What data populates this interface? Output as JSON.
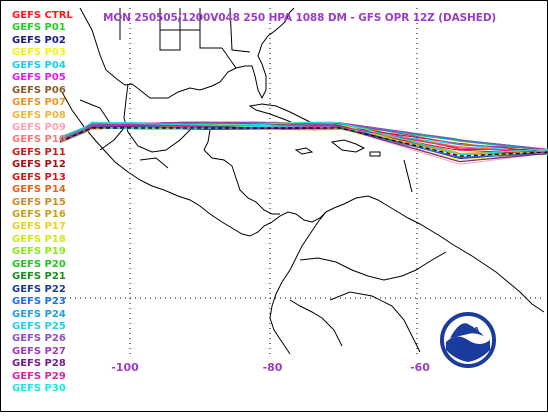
{
  "title": "MON 250505/1200V048  250 HPA 1088 DM - GFS OPR 12Z (DASHED)",
  "legend": [
    {
      "label": "GEFS CTRL",
      "color": "#ff1a1a"
    },
    {
      "label": "GEFS P01",
      "color": "#20d020"
    },
    {
      "label": "GEFS P02",
      "color": "#1a1a8c"
    },
    {
      "label": "GEFS P03",
      "color": "#f2f21a"
    },
    {
      "label": "GEFS P04",
      "color": "#1ad0e8"
    },
    {
      "label": "GEFS P05",
      "color": "#e81ae8"
    },
    {
      "label": "GEFS P06",
      "color": "#8c5a2a"
    },
    {
      "label": "GEFS P07",
      "color": "#f0902a"
    },
    {
      "label": "GEFS P08",
      "color": "#f0b43c"
    },
    {
      "label": "GEFS P09",
      "color": "#ffa0b4"
    },
    {
      "label": "GEFS P10",
      "color": "#f07878"
    },
    {
      "label": "GEFS P11",
      "color": "#d01a1a"
    },
    {
      "label": "GEFS P12",
      "color": "#a01414"
    },
    {
      "label": "GEFS P13",
      "color": "#c81e1e"
    },
    {
      "label": "GEFS P14",
      "color": "#e0641e"
    },
    {
      "label": "GEFS P15",
      "color": "#d28c1e"
    },
    {
      "label": "GEFS P16",
      "color": "#c8a01e"
    },
    {
      "label": "GEFS P17",
      "color": "#e6d21e"
    },
    {
      "label": "GEFS P18",
      "color": "#d2e61e"
    },
    {
      "label": "GEFS P19",
      "color": "#8ce61e"
    },
    {
      "label": "GEFS P20",
      "color": "#1ec81e"
    },
    {
      "label": "GEFS P21",
      "color": "#1e8c1e"
    },
    {
      "label": "GEFS P22",
      "color": "#1e3c8c"
    },
    {
      "label": "GEFS P23",
      "color": "#1e6ee6"
    },
    {
      "label": "GEFS P24",
      "color": "#1ea0e6"
    },
    {
      "label": "GEFS P25",
      "color": "#1ed2e6"
    },
    {
      "label": "GEFS P26",
      "color": "#8c50c8"
    },
    {
      "label": "GEFS P27",
      "color": "#a03cb4"
    },
    {
      "label": "GEFS P28",
      "color": "#781e8c"
    },
    {
      "label": "GEFS P29",
      "color": "#e61ea0"
    },
    {
      "label": "GEFS P30",
      "color": "#1ee6e6"
    }
  ],
  "longitude_labels": [
    {
      "text": "-100",
      "lon": -100
    },
    {
      "text": "-80",
      "lon": -80
    },
    {
      "text": "-60",
      "lon": -60
    }
  ],
  "logo_text": "NOAA",
  "colors": {
    "title": "#9b3cc8",
    "map_lines": "#000000",
    "gridlines": "#000000",
    "logo_blue": "#1a3c9e"
  }
}
